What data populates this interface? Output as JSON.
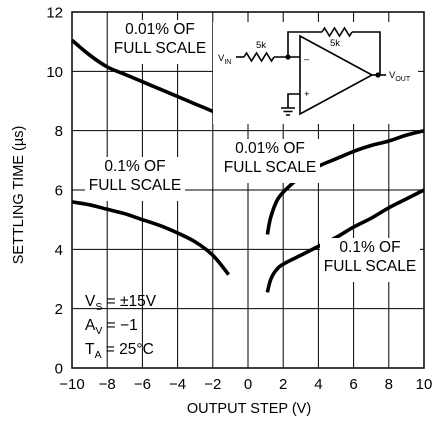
{
  "chart_data": {
    "type": "line",
    "xlabel": "OUTPUT STEP (V)",
    "ylabel": "SETTLING TIME (µs)",
    "xlim": [
      -10,
      10
    ],
    "ylim": [
      0,
      12
    ],
    "xticks": [
      "−10",
      "−8",
      "−6",
      "−4",
      "−2",
      "0",
      "2",
      "4",
      "6",
      "8",
      "10"
    ],
    "yticks": [
      "0",
      "2",
      "4",
      "6",
      "8",
      "10",
      "12"
    ],
    "grid": true,
    "series": [
      {
        "key": "neg_001",
        "x": [
          -10,
          -9,
          -8,
          -7,
          -6,
          -5,
          -4,
          -3,
          -2,
          -1.1
        ],
        "y": [
          11.05,
          10.55,
          10.15,
          9.9,
          9.65,
          9.4,
          9.15,
          8.9,
          8.65,
          8.4
        ]
      },
      {
        "key": "neg_01",
        "x": [
          -10,
          -9,
          -8,
          -7,
          -6,
          -5,
          -4,
          -3,
          -2,
          -1.1
        ],
        "y": [
          5.6,
          5.5,
          5.35,
          5.2,
          5.0,
          4.8,
          4.55,
          4.25,
          3.8,
          3.15
        ]
      },
      {
        "key": "pos_001",
        "x": [
          1.1,
          1.3,
          1.7,
          2.3,
          3,
          4,
          5,
          6,
          7,
          8,
          9,
          10
        ],
        "y": [
          4.5,
          5.1,
          5.7,
          6.1,
          6.45,
          6.8,
          7.05,
          7.3,
          7.5,
          7.65,
          7.85,
          8.0
        ]
      },
      {
        "key": "pos_01",
        "x": [
          1.1,
          1.3,
          1.6,
          2,
          3,
          4,
          5,
          6,
          7,
          8,
          9,
          10
        ],
        "y": [
          2.55,
          3.0,
          3.3,
          3.5,
          3.8,
          4.1,
          4.4,
          4.75,
          5.05,
          5.4,
          5.7,
          6.0
        ]
      }
    ],
    "annotations": [
      {
        "key": "neg_001_label",
        "lines": [
          "0.01% OF",
          "FULL SCALE"
        ]
      },
      {
        "key": "neg_01_label",
        "lines": [
          "0.1% OF",
          "FULL SCALE"
        ]
      },
      {
        "key": "pos_001_label",
        "lines": [
          "0.01% OF",
          "FULL SCALE"
        ]
      },
      {
        "key": "pos_01_label",
        "lines": [
          "0.1% OF",
          "FULL SCALE"
        ]
      }
    ],
    "conditions": {
      "vs": {
        "main": "V",
        "sub": "S",
        "rest": " = ±15V"
      },
      "av": {
        "main": "A",
        "sub": "V",
        "rest": " = −1"
      },
      "ta": {
        "main": "T",
        "sub": "A",
        "rest": " = 25°C"
      }
    },
    "schematic": {
      "vin": {
        "main": "V",
        "sub": "IN"
      },
      "vout": {
        "main": "V",
        "sub": "OUT"
      },
      "r_in": "5k",
      "r_fb": "5k",
      "minus": "–",
      "plus": "+"
    }
  }
}
